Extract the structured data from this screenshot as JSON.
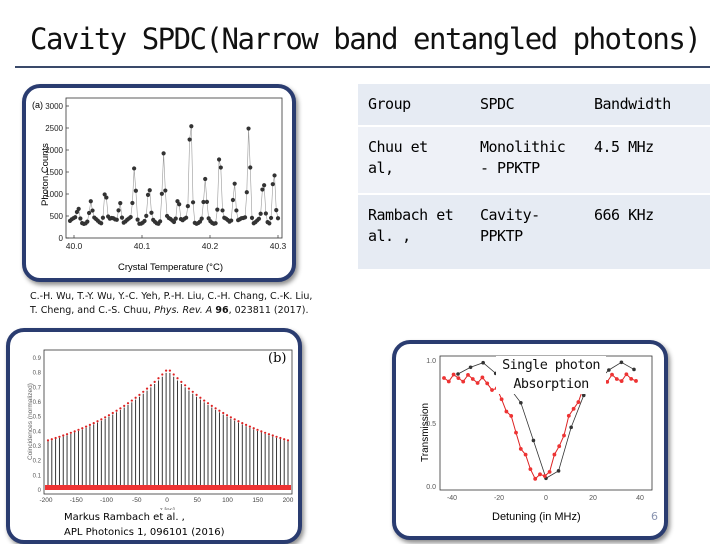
{
  "slide": {
    "title": "Cavity SPDC(Narrow band entangled photons)",
    "page_number": "6"
  },
  "figure_a": {
    "panel_label": "(a)",
    "ylabel": "Photon Counts",
    "xlabel": "Crystal Temperature (°C)",
    "yticks": [
      "3000",
      "2500",
      "2000",
      "1500",
      "1000",
      "500",
      "0"
    ],
    "xticks": [
      "40.0",
      "40.1",
      "40.2",
      "40.3"
    ]
  },
  "caption_a": {
    "line1": "C.-H. Wu, T.-Y. Wu, Y.-C. Yeh, P.-H. Liu, C.-H. Chang, C.-K. Liu,",
    "line2_pre": "T. Cheng, and C.-S. Chuu, ",
    "journal": "Phys. Rev. A",
    "volume": "96",
    "line2_post": ", 023811 (2017)."
  },
  "table": {
    "headers": [
      "Group",
      "SPDC",
      "Bandwidth"
    ],
    "rows": [
      [
        "Chuu et al,",
        "Monolithic - PPKTP",
        "4.5 MHz"
      ],
      [
        "Rambach et al. ,",
        "Cavity-PPKTP",
        "666 KHz"
      ]
    ]
  },
  "figure_b": {
    "panel_label": "(b)",
    "ylabel": "Coincidences (normalized)",
    "xlabel": "τ [ns]",
    "yticks": [
      "0.9",
      "0.8",
      "0.7",
      "0.6",
      "0.5",
      "0.4",
      "0.3",
      "0.2",
      "0.1",
      "0"
    ],
    "xticks": [
      "-200",
      "-150",
      "-100",
      "-50",
      "0",
      "50",
      "100",
      "150",
      "200"
    ]
  },
  "caption_b": {
    "line1": "Markus Rambach et al. ,",
    "line2": "APL Photonics 1, 096101 (2016)"
  },
  "figure_c": {
    "ylabel": "Transmission",
    "xlabel": "Detuning (in MHz)",
    "yticks": [
      "1.0",
      "0.5",
      "0.0"
    ],
    "xticks": [
      "-40",
      "-20",
      "0",
      "20",
      "40"
    ],
    "label_line1": "Single photon",
    "label_line2": "Absorption"
  }
}
